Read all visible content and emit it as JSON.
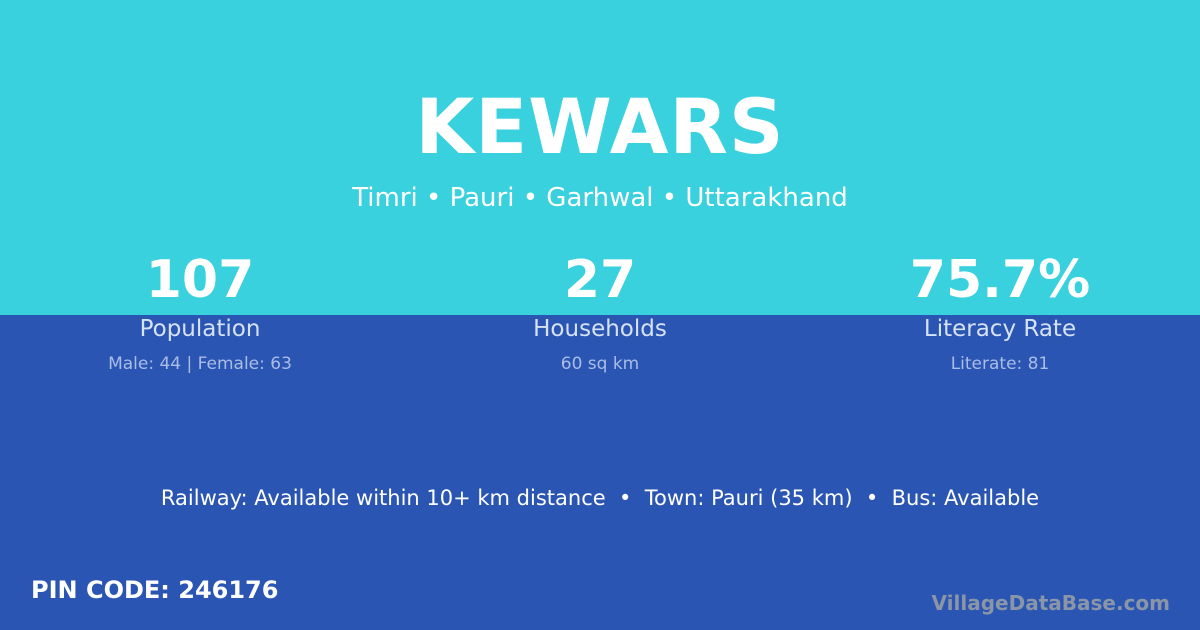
{
  "village": "KEWARS",
  "location": "Timri • Pauri • Garhwal • Uttarakhand",
  "stats": [
    {
      "value": "107",
      "label": "Population",
      "detail": "Male: 44 | Female: 63"
    },
    {
      "value": "27",
      "label": "Households",
      "detail": "60 sq km"
    },
    {
      "value": "75.7%",
      "label": "Literacy Rate",
      "detail": "Literate: 81"
    }
  ],
  "connectivity": "Railway: Available within 10+ km distance  •  Town: Pauri (35 km)  •  Bus: Available",
  "pin": "PIN CODE: 246176",
  "brand": "VillageDataBase.com",
  "colors": {
    "top": "#38d1dd",
    "bottom": "#2a55b3"
  }
}
